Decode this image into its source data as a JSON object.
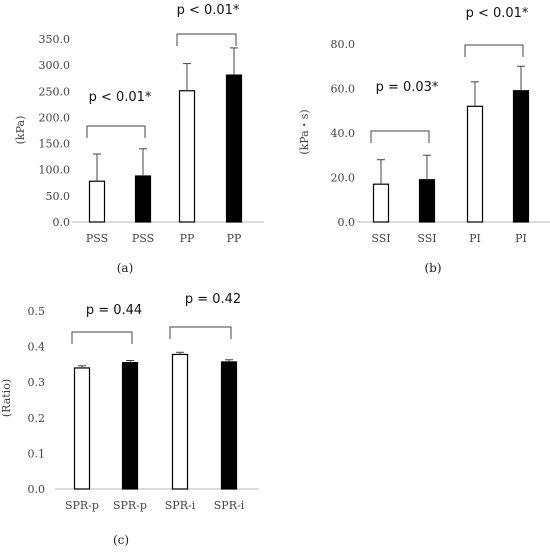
{
  "chart_data": [
    {
      "type": "bar",
      "panel_label": "(a)",
      "ylabel": "(kPa)",
      "ylim": [
        0,
        350
      ],
      "yticks": [
        "0.0",
        "50.0",
        "100.0",
        "150.0",
        "200.0",
        "250.0",
        "300.0",
        "350.0"
      ],
      "categories": [
        "PSS",
        "PSS",
        "PP",
        "PP"
      ],
      "values": [
        78,
        88,
        251,
        281
      ],
      "errors": [
        52,
        52,
        52,
        52
      ],
      "fills": [
        "#ffffff",
        "#000000",
        "#ffffff",
        "#000000"
      ],
      "grid": false,
      "annotations": [
        {
          "between": [
            0,
            1
          ],
          "text": "p < 0.01*"
        },
        {
          "between": [
            2,
            3
          ],
          "text": "p < 0.01*"
        }
      ]
    },
    {
      "type": "bar",
      "panel_label": "(b)",
      "ylabel": "(kPa・s)",
      "ylim": [
        0,
        80
      ],
      "yticks": [
        "0.0",
        "20.0",
        "40.0",
        "60.0",
        "80.0"
      ],
      "categories": [
        "SSI",
        "SSI",
        "PI",
        "PI"
      ],
      "values": [
        17,
        19,
        52,
        59
      ],
      "errors": [
        11,
        11,
        11,
        11
      ],
      "fills": [
        "#ffffff",
        "#000000",
        "#ffffff",
        "#000000"
      ],
      "grid": false,
      "annotations": [
        {
          "between": [
            0,
            1
          ],
          "text": "p = 0.03*"
        },
        {
          "between": [
            2,
            3
          ],
          "text": "p < 0.01*"
        }
      ]
    },
    {
      "type": "bar",
      "panel_label": "(c)",
      "ylabel": "(Ratio)",
      "ylim": [
        0,
        0.5
      ],
      "yticks": [
        "0.0",
        "0.1",
        "0.2",
        "0.3",
        "0.4",
        "0.5"
      ],
      "categories": [
        "SPR-p",
        "SPR-p",
        "SPR-i",
        "SPR-i"
      ],
      "values": [
        0.34,
        0.355,
        0.378,
        0.357
      ],
      "errors": [
        0.006,
        0.006,
        0.006,
        0.006
      ],
      "fills": [
        "#ffffff",
        "#000000",
        "#ffffff",
        "#000000"
      ],
      "grid": false,
      "annotations": [
        {
          "between": [
            0,
            1
          ],
          "text": "p = 0.44"
        },
        {
          "between": [
            2,
            3
          ],
          "text": "p = 0.42"
        }
      ]
    }
  ]
}
